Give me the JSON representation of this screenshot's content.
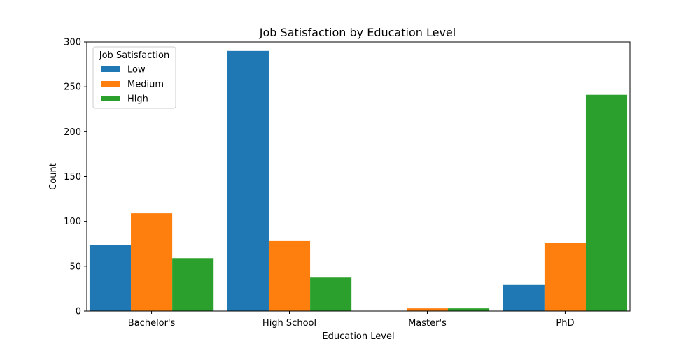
{
  "chart_data": {
    "type": "bar",
    "title": "Job Satisfaction by Education Level",
    "xlabel": "Education Level",
    "ylabel": "Count",
    "categories": [
      "Bachelor's",
      "High School",
      "Master's",
      "PhD"
    ],
    "series": [
      {
        "name": "Low",
        "values": [
          74,
          290,
          0,
          29
        ]
      },
      {
        "name": "Medium",
        "values": [
          109,
          78,
          3,
          76
        ]
      },
      {
        "name": "High",
        "values": [
          59,
          38,
          3,
          241
        ]
      }
    ],
    "colors": [
      "#1f77b4",
      "#ff7f0e",
      "#2ca02c"
    ],
    "ylim": [
      0,
      300
    ],
    "yticks": [
      0,
      50,
      100,
      150,
      200,
      250,
      300
    ],
    "legend": {
      "title": "Job Satisfaction",
      "placement": "top-left"
    },
    "grid": false
  }
}
